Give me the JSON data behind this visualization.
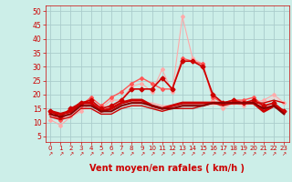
{
  "background_color": "#cceee8",
  "grid_color": "#aacccc",
  "xlabel": "Vent moyen/en rafales ( km/h )",
  "xlabel_color": "#cc0000",
  "xlabel_fontsize": 7,
  "ylabel_ticks": [
    5,
    10,
    15,
    20,
    25,
    30,
    35,
    40,
    45,
    50
  ],
  "xticks": [
    0,
    1,
    2,
    3,
    4,
    5,
    6,
    7,
    8,
    9,
    10,
    11,
    12,
    13,
    14,
    15,
    16,
    17,
    18,
    19,
    20,
    21,
    22,
    23
  ],
  "xlim": [
    -0.5,
    23.5
  ],
  "ylim": [
    3,
    52
  ],
  "tick_color": "#cc0000",
  "series": [
    {
      "x": [
        0,
        1,
        2,
        3,
        4,
        5,
        6,
        7,
        8,
        9,
        10,
        11,
        12,
        13,
        14,
        15,
        16,
        17,
        18,
        19,
        20,
        21,
        22,
        23
      ],
      "y": [
        11,
        9,
        12,
        14,
        17,
        15,
        18,
        18,
        23,
        24,
        21,
        29,
        21,
        48,
        33,
        31,
        18,
        15,
        17,
        16,
        17,
        18,
        20,
        17
      ],
      "color": "#ffaaaa",
      "lw": 0.8,
      "marker": "D",
      "ms": 2.0,
      "zorder": 2
    },
    {
      "x": [
        0,
        1,
        2,
        3,
        4,
        5,
        6,
        7,
        8,
        9,
        10,
        11,
        12,
        13,
        14,
        15,
        16,
        17,
        18,
        19,
        20,
        21,
        22,
        23
      ],
      "y": [
        13,
        11,
        14,
        16,
        19,
        16,
        19,
        21,
        24,
        26,
        24,
        22,
        22,
        33,
        32,
        31,
        19,
        17,
        18,
        18,
        19,
        16,
        17,
        14
      ],
      "color": "#ff5555",
      "lw": 1.0,
      "marker": "D",
      "ms": 2.0,
      "zorder": 3
    },
    {
      "x": [
        0,
        1,
        2,
        3,
        4,
        5,
        6,
        7,
        8,
        9,
        10,
        11,
        12,
        13,
        14,
        15,
        16,
        17,
        18,
        19,
        20,
        21,
        22,
        23
      ],
      "y": [
        14,
        12,
        15,
        17,
        18,
        15,
        16,
        18,
        22,
        22,
        22,
        26,
        22,
        32,
        32,
        30,
        20,
        17,
        18,
        17,
        18,
        16,
        17,
        14
      ],
      "color": "#cc0000",
      "lw": 1.2,
      "marker": "D",
      "ms": 2.5,
      "zorder": 4
    },
    {
      "x": [
        0,
        1,
        2,
        3,
        4,
        5,
        6,
        7,
        8,
        9,
        10,
        11,
        12,
        13,
        14,
        15,
        16,
        17,
        18,
        19,
        20,
        21,
        22,
        23
      ],
      "y": [
        14,
        13,
        14,
        17,
        17,
        14,
        15,
        17,
        18,
        18,
        16,
        15,
        16,
        17,
        17,
        17,
        17,
        17,
        17,
        17,
        17,
        14,
        16,
        14
      ],
      "color": "#cc0000",
      "lw": 2.2,
      "marker": null,
      "ms": 0,
      "zorder": 5
    },
    {
      "x": [
        0,
        1,
        2,
        3,
        4,
        5,
        6,
        7,
        8,
        9,
        10,
        11,
        12,
        13,
        14,
        15,
        16,
        17,
        18,
        19,
        20,
        21,
        22,
        23
      ],
      "y": [
        13,
        12,
        13,
        16,
        16,
        14,
        14,
        16,
        17,
        17,
        16,
        15,
        15,
        16,
        16,
        16,
        17,
        17,
        17,
        17,
        17,
        15,
        16,
        13
      ],
      "color": "#880000",
      "lw": 1.5,
      "marker": null,
      "ms": 0,
      "zorder": 5
    },
    {
      "x": [
        0,
        1,
        2,
        3,
        4,
        5,
        6,
        7,
        8,
        9,
        10,
        11,
        12,
        13,
        14,
        15,
        16,
        17,
        18,
        19,
        20,
        21,
        22,
        23
      ],
      "y": [
        12,
        11,
        12,
        15,
        15,
        13,
        13,
        15,
        16,
        16,
        15,
        14,
        15,
        15,
        15,
        16,
        17,
        16,
        17,
        17,
        17,
        17,
        18,
        17
      ],
      "color": "#cc0000",
      "lw": 1.0,
      "marker": null,
      "ms": 0,
      "zorder": 4
    },
    {
      "x": [
        0,
        1,
        2,
        3,
        4,
        5,
        6,
        7,
        8,
        9,
        10,
        11,
        12,
        13,
        14,
        15,
        16,
        17,
        18,
        19,
        20,
        21,
        22,
        23
      ],
      "y": [
        14,
        13,
        14,
        17,
        17,
        15,
        15,
        17,
        18,
        17,
        17,
        16,
        16,
        17,
        17,
        17,
        17,
        17,
        17,
        17,
        17,
        16,
        16,
        14
      ],
      "color": "#ffaaaa",
      "lw": 1.0,
      "marker": null,
      "ms": 0,
      "zorder": 3
    },
    {
      "x": [
        0,
        1,
        2,
        3,
        4,
        5,
        6,
        7,
        8,
        9,
        10,
        11,
        12,
        13,
        14,
        15,
        16,
        17,
        18,
        19,
        20,
        21,
        22,
        23
      ],
      "y": [
        13,
        11,
        13,
        15,
        15,
        13,
        13,
        15,
        16,
        17,
        16,
        15,
        15,
        16,
        16,
        16,
        16,
        17,
        17,
        16,
        17,
        17,
        19,
        17
      ],
      "color": "#ffcccc",
      "lw": 0.8,
      "marker": null,
      "ms": 0,
      "zorder": 2
    }
  ],
  "arrow_color": "#cc0000"
}
